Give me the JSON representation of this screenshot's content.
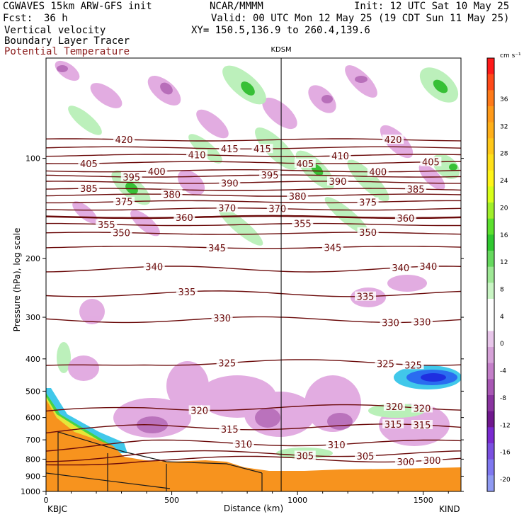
{
  "header": {
    "model": "CGWAVES 15km ARW-GFS init",
    "org": "NCAR/MMMM",
    "init": "Init: 12 UTC Sat 10 May 25",
    "fcst_label": "Fcst:",
    "fcst_value": "36 h",
    "valid": "Valid: 00 UTC Mon 12 May 25 (19 CDT Sun 11 May 25)",
    "field1": "Vertical velocity",
    "xy": "XY= 150.5,136.9 to 260.4,139.6",
    "field2": "Boundary Layer Tracer",
    "field3": "Potential Temperature"
  },
  "chart_data": {
    "type": "cross-section",
    "xlabel": "Distance (km)",
    "ylabel": "Pressure (hPa), log scale",
    "x_ticks": [
      "0",
      "500",
      "1000",
      "1500"
    ],
    "y_ticks": [
      "100",
      "200",
      "300",
      "400",
      "500",
      "600",
      "700",
      "800",
      "900",
      "1000"
    ],
    "xlim": [
      0,
      1650
    ],
    "ylim": [
      1000,
      50
    ],
    "y_scale": "log",
    "endpoints": {
      "left": "KBJC",
      "right": "KIND"
    },
    "marker": {
      "label": "KDSM",
      "x_km": 935
    },
    "colorbar": {
      "unit": "cm s⁻¹",
      "ticks": [
        "36",
        "32",
        "28",
        "24",
        "20",
        "16",
        "12",
        "8",
        "4",
        "0",
        "-4",
        "-8",
        "-12",
        "-16",
        "-20"
      ]
    },
    "theta_isentropes": [
      {
        "value": 300,
        "labels_km": [
          1430,
          1535
        ]
      },
      {
        "value": 305,
        "labels_km": [
          1030,
          1270
        ]
      },
      {
        "value": 310,
        "labels_km": [
          785,
          1155
        ]
      },
      {
        "value": 315,
        "labels_km": [
          730,
          1380,
          1495
        ]
      },
      {
        "value": 320,
        "labels_km": [
          610,
          1385,
          1495
        ]
      },
      {
        "value": 325,
        "labels_km": [
          720,
          1350,
          1460
        ]
      },
      {
        "value": 330,
        "labels_km": [
          700,
          1370,
          1495
        ]
      },
      {
        "value": 335,
        "labels_km": [
          560,
          1270
        ]
      },
      {
        "value": 340,
        "labels_km": [
          430,
          1410,
          1520
        ]
      },
      {
        "value": 345,
        "labels_km": [
          680,
          1140
        ]
      },
      {
        "value": 350,
        "labels_km": [
          300,
          1280
        ]
      },
      {
        "value": 355,
        "labels_km": [
          240,
          1020
        ]
      },
      {
        "value": 360,
        "labels_km": [
          550,
          1430
        ]
      },
      {
        "value": 370,
        "labels_km": [
          720,
          920
        ]
      },
      {
        "value": 375,
        "labels_km": [
          310,
          1280
        ]
      },
      {
        "value": 380,
        "labels_km": [
          500,
          1000
        ]
      },
      {
        "value": 385,
        "labels_km": [
          170,
          1470
        ]
      },
      {
        "value": 390,
        "labels_km": [
          730,
          1160
        ]
      },
      {
        "value": 395,
        "labels_km": [
          340,
          890
        ]
      },
      {
        "value": 400,
        "labels_km": [
          440,
          1320
        ]
      },
      {
        "value": 405,
        "labels_km": [
          170,
          1030,
          1530
        ]
      },
      {
        "value": 410,
        "labels_km": [
          600,
          1170
        ]
      },
      {
        "value": 415,
        "labels_km": [
          730,
          860
        ]
      },
      {
        "value": 420,
        "labels_km": [
          310,
          1380
        ]
      }
    ]
  }
}
